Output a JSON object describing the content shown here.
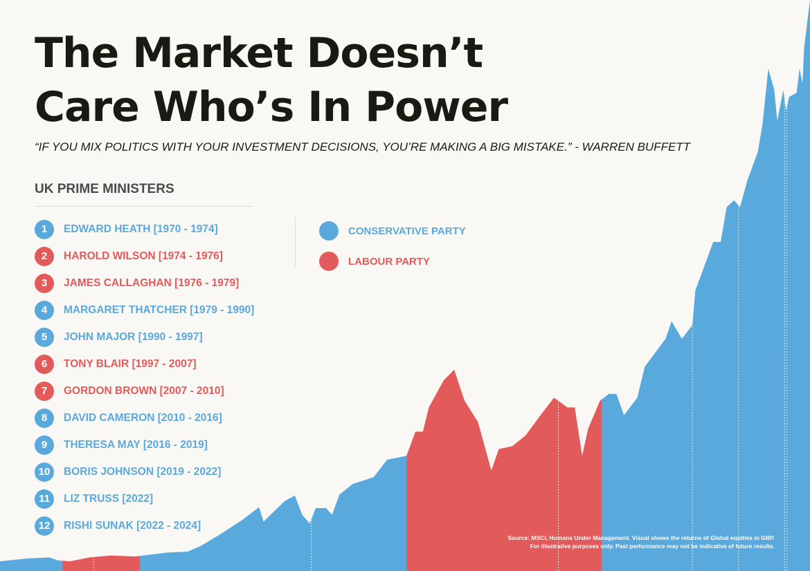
{
  "header": {
    "title_line1": "The Market Doesn’t",
    "title_line2": "Care Who’s In Power",
    "quote": "“IF YOU MIX POLITICS WITH YOUR INVESTMENT DECISIONS, YOU’RE MAKING A BIG MISTAKE.” - WARREN BUFFETT"
  },
  "colors": {
    "conservative": "#5aa9dc",
    "labour": "#e35a5a",
    "background": "#f9f8f4",
    "title": "#1b1a12"
  },
  "prime_ministers": {
    "heading": "UK PRIME MINISTERS",
    "items": [
      {
        "num": "1",
        "name": "EDWARD HEATH [1970 - 1974]",
        "party": "conservative"
      },
      {
        "num": "2",
        "name": "HAROLD WILSON [1974 - 1976]",
        "party": "labour"
      },
      {
        "num": "3",
        "name": "JAMES CALLAGHAN [1976 - 1979]",
        "party": "labour"
      },
      {
        "num": "4",
        "name": "MARGARET THATCHER [1979 - 1990]",
        "party": "conservative"
      },
      {
        "num": "5",
        "name": "JOHN MAJOR [1990 - 1997]",
        "party": "conservative"
      },
      {
        "num": "6",
        "name": "TONY BLAIR [1997 - 2007]",
        "party": "labour"
      },
      {
        "num": "7",
        "name": "GORDON BROWN [2007 - 2010]",
        "party": "labour"
      },
      {
        "num": "8",
        "name": "DAVID CAMERON [2010 - 2016]",
        "party": "conservative"
      },
      {
        "num": "9",
        "name": "THERESA MAY [2016 - 2019]",
        "party": "conservative"
      },
      {
        "num": "10",
        "name": "BORIS JOHNSON [2019 - 2022]",
        "party": "conservative"
      },
      {
        "num": "11",
        "name": "LIZ TRUSS [2022]",
        "party": "conservative"
      },
      {
        "num": "12",
        "name": "RISHI SUNAK [2022 - 2024]",
        "party": "conservative"
      }
    ]
  },
  "legend": {
    "items": [
      {
        "label": "CONSERVATIVE PARTY",
        "party": "conservative"
      },
      {
        "label": "LABOUR PARTY",
        "party": "labour"
      }
    ]
  },
  "source": {
    "line1": "Source: MSCI, Humans Under Management. Visual shows the returns of Global equities in GBP.",
    "line2": "For illustrative purposes only. Past performance may not be indicative of future results."
  },
  "chart_data": {
    "type": "area",
    "title": "",
    "xlabel": "",
    "ylabel": "",
    "xlim": [
      1970,
      2024.4
    ],
    "ylim": [
      0,
      59
    ],
    "grid": false,
    "axes_visible": false,
    "x": [
      1970,
      1971.9,
      1973.3,
      1973.9,
      1974.7,
      1976.0,
      1977.4,
      1979.1,
      1981.2,
      1982.6,
      1983.5,
      1984.9,
      1986.3,
      1987.4,
      1987.7,
      1989.1,
      1989.8,
      1990.3,
      1990.8,
      1991.2,
      1991.9,
      1992.3,
      1992.8,
      1993.7,
      1995.1,
      1996.0,
      1997.3,
      1997.9,
      1998.4,
      1998.8,
      1999.8,
      2000.5,
      2001.2,
      2002.1,
      2003.0,
      2003.5,
      2004.4,
      2005.3,
      2006.3,
      2007.2,
      2007.5,
      2008.1,
      2008.6,
      2009.1,
      2009.5,
      2010.3,
      2010.9,
      2011.4,
      2011.9,
      2012.8,
      2013.3,
      2014.7,
      2015.1,
      2015.8,
      2016.5,
      2016.7,
      2017.4,
      2017.9,
      2018.4,
      2018.8,
      2019.3,
      2019.7,
      2020.2,
      2020.9,
      2021.2,
      2021.6,
      2022.0,
      2022.2,
      2022.6,
      2022.8,
      2023.0,
      2023.5,
      2023.7,
      2023.9,
      2024.0,
      2024.4
    ],
    "values": [
      1.0,
      1.3,
      1.4,
      1.1,
      1.0,
      1.4,
      1.6,
      1.5,
      1.9,
      2.0,
      2.6,
      3.9,
      5.3,
      6.6,
      5.1,
      7.2,
      7.8,
      5.8,
      4.9,
      6.5,
      6.5,
      5.8,
      7.9,
      9.0,
      9.7,
      11.5,
      11.9,
      14.4,
      14.4,
      16.9,
      19.7,
      20.8,
      17.6,
      15.4,
      10.4,
      12.6,
      12.9,
      14.0,
      16.1,
      17.9,
      17.6,
      16.9,
      16.9,
      11.9,
      14.7,
      17.6,
      18.3,
      18.3,
      16.1,
      17.9,
      21.1,
      24.0,
      25.8,
      24.0,
      25.4,
      29.0,
      31.9,
      34.0,
      34.0,
      37.6,
      38.3,
      37.6,
      40.4,
      43.3,
      46.1,
      51.9,
      49.7,
      46.5,
      49.7,
      47.6,
      49.0,
      49.4,
      51.9,
      50.4,
      54.0,
      59.0
    ],
    "party_periods": [
      {
        "party": "conservative",
        "start": 1970,
        "end": 1974.2
      },
      {
        "party": "labour",
        "start": 1974.2,
        "end": 1979.4
      },
      {
        "party": "conservative",
        "start": 1979.4,
        "end": 1997.3
      },
      {
        "party": "labour",
        "start": 1997.3,
        "end": 2010.4
      },
      {
        "party": "conservative",
        "start": 2010.4,
        "end": 2024.4
      }
    ],
    "pm_change_markers": [
      1976.3,
      1990.9,
      2007.5,
      2016.5,
      2019.6,
      2022.7,
      2022.85
    ]
  }
}
